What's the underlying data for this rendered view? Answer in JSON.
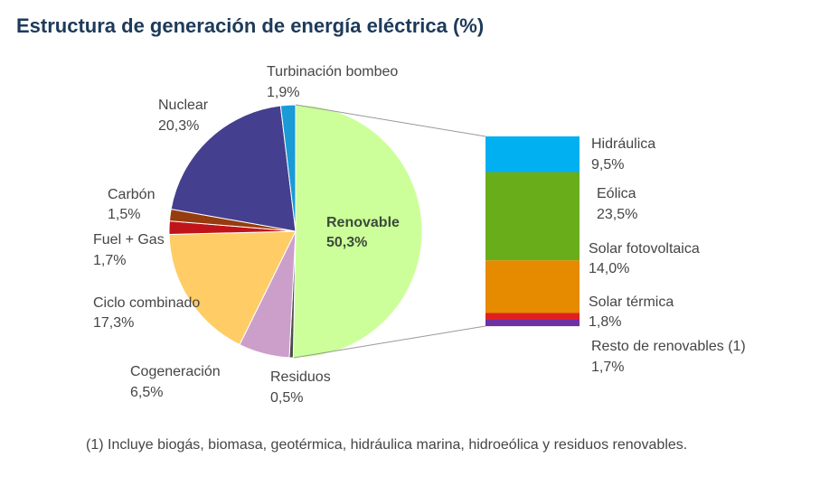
{
  "chart_data": [
    {
      "type": "pie",
      "title": "Estructura de generación de energía eléctrica (%)",
      "footnote": "(1) Incluye biogás, biomasa, geotérmica, hidráulica marina, hidroeólica y residuos renovables.",
      "categories": [
        "Renovable",
        "Residuos",
        "Cogeneración",
        "Ciclo combinado",
        "Fuel + Gas",
        "Carbón",
        "Nuclear",
        "Turbinación bombeo"
      ],
      "values": [
        50.3,
        0.5,
        6.5,
        17.3,
        1.7,
        1.5,
        20.3,
        1.9
      ],
      "value_labels": [
        "50,3%",
        "0,5%",
        "6,5%",
        "17,3%",
        "1,7%",
        "1,5%",
        "20,3%",
        "1,9%"
      ],
      "colors": [
        "#ccff99",
        "#4d4d4d",
        "#cc9fcb",
        "#ffcc66",
        "#c0141a",
        "#963c0e",
        "#453f8f",
        "#1a9ad6"
      ]
    },
    {
      "type": "bar",
      "categories": [
        "Hidráulica",
        "Eólica",
        "Solar fotovoltaica",
        "Solar térmica",
        "Resto de renovables (1)"
      ],
      "values": [
        9.5,
        23.5,
        14.0,
        1.8,
        1.7
      ],
      "value_labels": [
        "9,5%",
        "23,5%",
        "14,0%",
        "1,8%",
        "1,7%"
      ],
      "colors": [
        "#00b0f0",
        "#6aad1a",
        "#e68a00",
        "#e02020",
        "#7030a0"
      ]
    }
  ]
}
